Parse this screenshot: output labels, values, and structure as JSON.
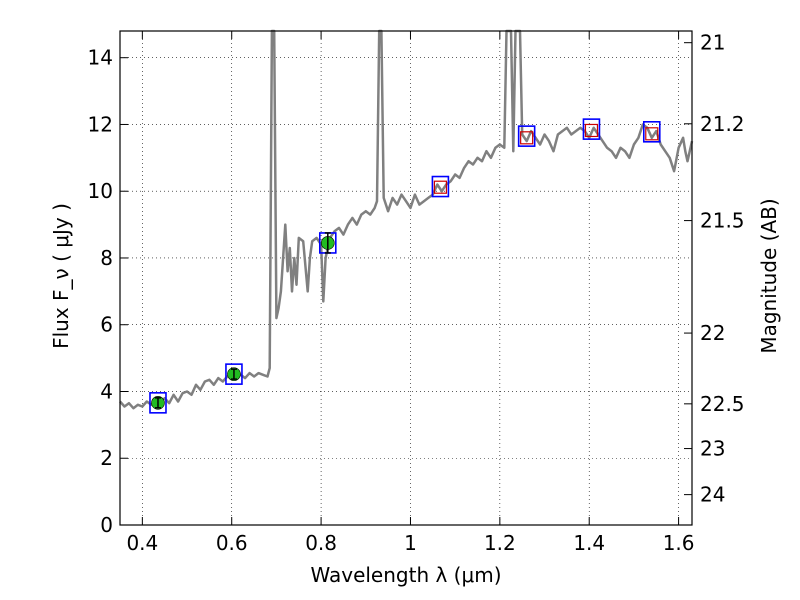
{
  "chart_data": {
    "type": "line",
    "xlabel": "Wavelength  λ (μm)",
    "ylabel": "Flux  F_ν  ( μJy )",
    "ylabel_right": "Magnitude (AB)",
    "xlim": [
      0.35,
      1.63
    ],
    "ylim": [
      0,
      14.8
    ],
    "x_ticks": [
      0.4,
      0.6,
      0.8,
      1.0,
      1.2,
      1.4,
      1.6
    ],
    "x_tick_labels": [
      "0.4",
      "0.6",
      "0.8",
      "1",
      "1.2",
      "1.4",
      "1.6"
    ],
    "y_ticks": [
      0,
      2,
      4,
      6,
      8,
      10,
      12,
      14
    ],
    "y_tick_labels": [
      "0",
      "2",
      "4",
      "6",
      "8",
      "10",
      "12",
      "14"
    ],
    "mag_ticks": [
      {
        "label": "21",
        "flux": 14.45
      },
      {
        "label": "21.2",
        "flux": 12.02
      },
      {
        "label": "21.5",
        "flux": 9.12
      },
      {
        "label": "22",
        "flux": 5.75
      },
      {
        "label": "22.5",
        "flux": 3.63
      },
      {
        "label": "23",
        "flux": 2.29
      },
      {
        "label": "24",
        "flux": 0.91
      }
    ],
    "grid": true,
    "colors": {
      "spectrum": "#808080",
      "model_box": "#0000ff",
      "measured_fill": "#22bb22",
      "upper_box": "#cc0000"
    },
    "series": [
      {
        "kind": "model_spectrum",
        "points": [
          [
            0.35,
            3.7
          ],
          [
            0.36,
            3.55
          ],
          [
            0.37,
            3.65
          ],
          [
            0.38,
            3.5
          ],
          [
            0.39,
            3.6
          ],
          [
            0.4,
            3.55
          ],
          [
            0.41,
            3.7
          ],
          [
            0.42,
            3.6
          ],
          [
            0.43,
            3.75
          ],
          [
            0.44,
            3.7
          ],
          [
            0.45,
            3.8
          ],
          [
            0.46,
            3.65
          ],
          [
            0.47,
            3.9
          ],
          [
            0.48,
            3.7
          ],
          [
            0.49,
            3.95
          ],
          [
            0.5,
            4.0
          ],
          [
            0.51,
            3.9
          ],
          [
            0.52,
            4.2
          ],
          [
            0.53,
            4.05
          ],
          [
            0.54,
            4.3
          ],
          [
            0.55,
            4.35
          ],
          [
            0.56,
            4.2
          ],
          [
            0.57,
            4.4
          ],
          [
            0.58,
            4.3
          ],
          [
            0.59,
            4.45
          ],
          [
            0.6,
            4.5
          ],
          [
            0.61,
            4.45
          ],
          [
            0.62,
            4.5
          ],
          [
            0.63,
            4.4
          ],
          [
            0.64,
            4.55
          ],
          [
            0.65,
            4.45
          ],
          [
            0.66,
            4.55
          ],
          [
            0.67,
            4.5
          ],
          [
            0.68,
            4.45
          ],
          [
            0.685,
            4.7
          ],
          [
            0.69,
            14.8
          ],
          [
            0.695,
            14.8
          ],
          [
            0.7,
            6.2
          ],
          [
            0.705,
            6.5
          ],
          [
            0.71,
            7.0
          ],
          [
            0.72,
            9.0
          ],
          [
            0.725,
            7.6
          ],
          [
            0.73,
            8.3
          ],
          [
            0.735,
            7.0
          ],
          [
            0.74,
            8.0
          ],
          [
            0.745,
            7.2
          ],
          [
            0.75,
            8.6
          ],
          [
            0.76,
            8.5
          ],
          [
            0.77,
            7.0
          ],
          [
            0.775,
            8.0
          ],
          [
            0.78,
            8.5
          ],
          [
            0.79,
            8.6
          ],
          [
            0.8,
            8.4
          ],
          [
            0.805,
            6.7
          ],
          [
            0.81,
            8.0
          ],
          [
            0.82,
            8.6
          ],
          [
            0.83,
            8.8
          ],
          [
            0.84,
            8.9
          ],
          [
            0.85,
            8.7
          ],
          [
            0.86,
            9.0
          ],
          [
            0.87,
            9.2
          ],
          [
            0.88,
            9.0
          ],
          [
            0.89,
            9.3
          ],
          [
            0.9,
            9.4
          ],
          [
            0.91,
            9.3
          ],
          [
            0.92,
            9.5
          ],
          [
            0.925,
            9.7
          ],
          [
            0.93,
            14.8
          ],
          [
            0.935,
            14.8
          ],
          [
            0.94,
            9.8
          ],
          [
            0.95,
            9.4
          ],
          [
            0.96,
            9.8
          ],
          [
            0.97,
            9.6
          ],
          [
            0.98,
            9.9
          ],
          [
            0.99,
            9.7
          ],
          [
            1.0,
            9.5
          ],
          [
            1.01,
            9.9
          ],
          [
            1.02,
            9.6
          ],
          [
            1.03,
            9.7
          ],
          [
            1.04,
            9.8
          ],
          [
            1.05,
            9.9
          ],
          [
            1.06,
            10.2
          ],
          [
            1.07,
            10.0
          ],
          [
            1.08,
            10.2
          ],
          [
            1.09,
            10.3
          ],
          [
            1.1,
            10.5
          ],
          [
            1.11,
            10.4
          ],
          [
            1.12,
            10.7
          ],
          [
            1.13,
            10.9
          ],
          [
            1.14,
            10.8
          ],
          [
            1.15,
            11.0
          ],
          [
            1.16,
            10.9
          ],
          [
            1.17,
            11.2
          ],
          [
            1.18,
            11.0
          ],
          [
            1.19,
            11.3
          ],
          [
            1.2,
            11.4
          ],
          [
            1.21,
            11.3
          ],
          [
            1.215,
            14.8
          ],
          [
            1.225,
            14.8
          ],
          [
            1.23,
            11.2
          ],
          [
            1.235,
            14.8
          ],
          [
            1.245,
            14.8
          ],
          [
            1.25,
            11.7
          ],
          [
            1.26,
            11.5
          ],
          [
            1.27,
            11.8
          ],
          [
            1.28,
            11.6
          ],
          [
            1.29,
            11.4
          ],
          [
            1.3,
            11.7
          ],
          [
            1.31,
            11.5
          ],
          [
            1.32,
            11.2
          ],
          [
            1.33,
            11.7
          ],
          [
            1.34,
            11.8
          ],
          [
            1.35,
            11.9
          ],
          [
            1.36,
            11.7
          ],
          [
            1.37,
            11.8
          ],
          [
            1.38,
            11.9
          ],
          [
            1.39,
            11.8
          ],
          [
            1.4,
            11.6
          ],
          [
            1.41,
            11.9
          ],
          [
            1.42,
            11.7
          ],
          [
            1.43,
            11.5
          ],
          [
            1.44,
            11.3
          ],
          [
            1.45,
            11.2
          ],
          [
            1.46,
            11.0
          ],
          [
            1.47,
            11.3
          ],
          [
            1.48,
            11.2
          ],
          [
            1.49,
            11.0
          ],
          [
            1.5,
            11.4
          ],
          [
            1.51,
            11.6
          ],
          [
            1.52,
            12.0
          ],
          [
            1.53,
            11.9
          ],
          [
            1.54,
            11.6
          ],
          [
            1.55,
            11.8
          ],
          [
            1.56,
            11.4
          ],
          [
            1.57,
            11.2
          ],
          [
            1.58,
            11.0
          ],
          [
            1.59,
            10.6
          ],
          [
            1.6,
            11.3
          ],
          [
            1.61,
            11.6
          ],
          [
            1.615,
            11.2
          ],
          [
            1.62,
            10.9
          ],
          [
            1.63,
            11.5
          ]
        ]
      },
      {
        "kind": "model_photometry",
        "points": [
          [
            0.435,
            3.66
          ],
          [
            0.605,
            4.52
          ],
          [
            0.815,
            8.45
          ],
          [
            1.067,
            10.14
          ],
          [
            1.26,
            11.65
          ],
          [
            1.405,
            11.86
          ],
          [
            1.54,
            11.78
          ]
        ]
      },
      {
        "kind": "measured_photometry",
        "points": [
          [
            0.435,
            3.66,
            0.15
          ],
          [
            0.605,
            4.52,
            0.15
          ],
          [
            0.815,
            8.45,
            0.3
          ]
        ]
      },
      {
        "kind": "photometry_nondetected",
        "points": [
          [
            1.067,
            10.12
          ],
          [
            1.26,
            11.6
          ],
          [
            1.405,
            11.82
          ],
          [
            1.54,
            11.72
          ]
        ]
      }
    ]
  }
}
